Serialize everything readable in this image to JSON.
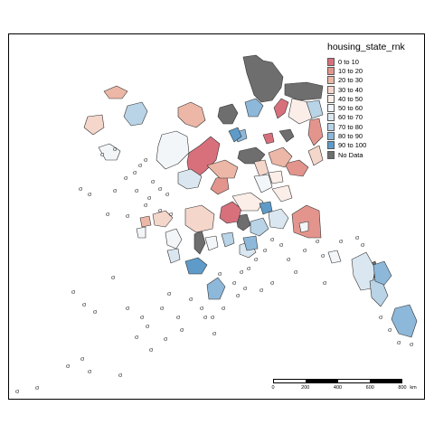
{
  "legend": {
    "title": "housing_state_rnk",
    "entries": [
      {
        "label": "0 to 10",
        "color": "#d8707c"
      },
      {
        "label": "10 to 20",
        "color": "#e3958d"
      },
      {
        "label": "20 to 30",
        "color": "#ecb7a6"
      },
      {
        "label": "30 to 40",
        "color": "#f5d6cb"
      },
      {
        "label": "40 to 50",
        "color": "#fbeee9"
      },
      {
        "label": "50 to 60",
        "color": "#f2f6f9"
      },
      {
        "label": "60 to 70",
        "color": "#dbe7f0"
      },
      {
        "label": "70 to 80",
        "color": "#b9d3e7"
      },
      {
        "label": "80 to 90",
        "color": "#8db8da"
      },
      {
        "label": "90 to 100",
        "color": "#5f9bc9"
      },
      {
        "label": "No Data",
        "color": "#6e6e6e"
      }
    ]
  },
  "scale_bar": {
    "ticks": [
      "0",
      "200",
      "400",
      "600",
      "800"
    ],
    "unit": "km"
  }
}
